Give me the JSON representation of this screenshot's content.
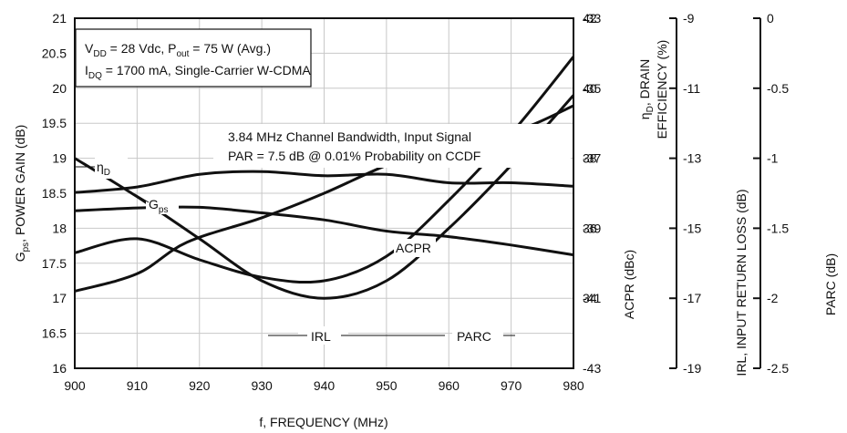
{
  "chart_data": {
    "type": "line",
    "xlabel": "f, FREQUENCY (MHz)",
    "x": [
      900,
      910,
      920,
      930,
      940,
      950,
      960,
      970,
      980
    ],
    "xlim": [
      900,
      980
    ],
    "x_ticks": [
      "900",
      "910",
      "920",
      "930",
      "940",
      "950",
      "960",
      "970",
      "980"
    ],
    "axes": {
      "gain": {
        "label_main": "G",
        "label_sub": "ps",
        "label_rest": ", POWER GAIN (dB)",
        "ylim": [
          16,
          21
        ],
        "ticks": [
          "16",
          "16.5",
          "17",
          "17.5",
          "18",
          "18.5",
          "19",
          "19.5",
          "20",
          "20.5",
          "21"
        ]
      },
      "efficiency": {
        "label_line1_main": "η",
        "label_line1_sub": "D",
        "label_line1_rest": ", DRAIN",
        "label_line2": "EFFICIENCY (%)",
        "ylim": [
          32,
          42
        ],
        "ticks": [
          "34",
          "36",
          "38",
          "40",
          "42"
        ]
      },
      "acpr": {
        "label": "ACPR (dBc)",
        "ylim": [
          -43,
          -33
        ],
        "ticks": [
          "-33",
          "-35",
          "-37",
          "-39",
          "-41",
          "-43"
        ]
      },
      "irl": {
        "label": "IRL, INPUT RETURN LOSS (dB)",
        "ylim": [
          -19,
          -9
        ],
        "ticks": [
          "-9",
          "-11",
          "-13",
          "-15",
          "-17",
          "-19"
        ]
      },
      "parc": {
        "label": "PARC (dB)",
        "ylim": [
          -2.5,
          0
        ],
        "ticks": [
          "0",
          "-0.5",
          "-1",
          "-1.5",
          "-2",
          "-2.5"
        ]
      }
    },
    "series": [
      {
        "name": "ηD",
        "axis": "efficiency",
        "x": [
          900,
          910,
          918,
          930,
          940,
          950,
          962,
          971,
          980
        ],
        "y": [
          34.2,
          34.7,
          35.6,
          36.3,
          37.0,
          37.8,
          38.6,
          38.8,
          39.5
        ]
      },
      {
        "name": "Gps",
        "axis": "gain",
        "x": [
          900,
          910,
          920,
          930,
          940,
          950,
          960,
          970,
          980
        ],
        "y": [
          18.51,
          18.59,
          18.77,
          18.81,
          18.75,
          18.77,
          18.65,
          18.65,
          18.6
        ]
      },
      {
        "name": "ACPR",
        "axis": "acpr",
        "x": [
          900,
          910,
          920,
          930,
          940,
          950,
          960,
          970,
          980
        ],
        "y": [
          -39.7,
          -39.3,
          -39.9,
          -40.4,
          -40.5,
          -39.8,
          -38.2,
          -36.3,
          -34.1
        ]
      },
      {
        "name": "IRL",
        "axis": "irl",
        "x": [
          900,
          910,
          920,
          930,
          940,
          950,
          960,
          970,
          980
        ],
        "y": [
          -13.0,
          -14.1,
          -15.3,
          -16.5,
          -17.0,
          -16.5,
          -15.0,
          -13.2,
          -11.2
        ]
      },
      {
        "name": "PARC",
        "axis": "parc",
        "x": [
          900,
          910,
          920,
          930,
          940,
          950,
          960,
          970,
          980
        ],
        "y": [
          -1.375,
          -1.355,
          -1.35,
          -1.39,
          -1.44,
          -1.52,
          -1.56,
          -1.62,
          -1.69
        ]
      }
    ],
    "curve_labels": {
      "eta_main": "η",
      "eta_sub": "D",
      "gps_main": "G",
      "gps_sub": "ps",
      "acpr": "ACPR",
      "irl": "IRL",
      "parc": "PARC"
    },
    "conditions": {
      "line1": {
        "v": "V",
        "v_sub": "DD",
        "mid": " = 28 Vdc, P",
        "p_sub": "out",
        "rest": " = 75 W (Avg.)"
      },
      "line2": {
        "i": "I",
        "i_sub": "DQ",
        "rest": " = 1700 mA, Single-Carrier W-CDMA"
      }
    },
    "annotation": {
      "line1": "3.84 MHz Channel Bandwidth, Input Signal",
      "line2": "PAR = 7.5 dB @ 0.01% Probability on CCDF"
    },
    "grid": true
  }
}
